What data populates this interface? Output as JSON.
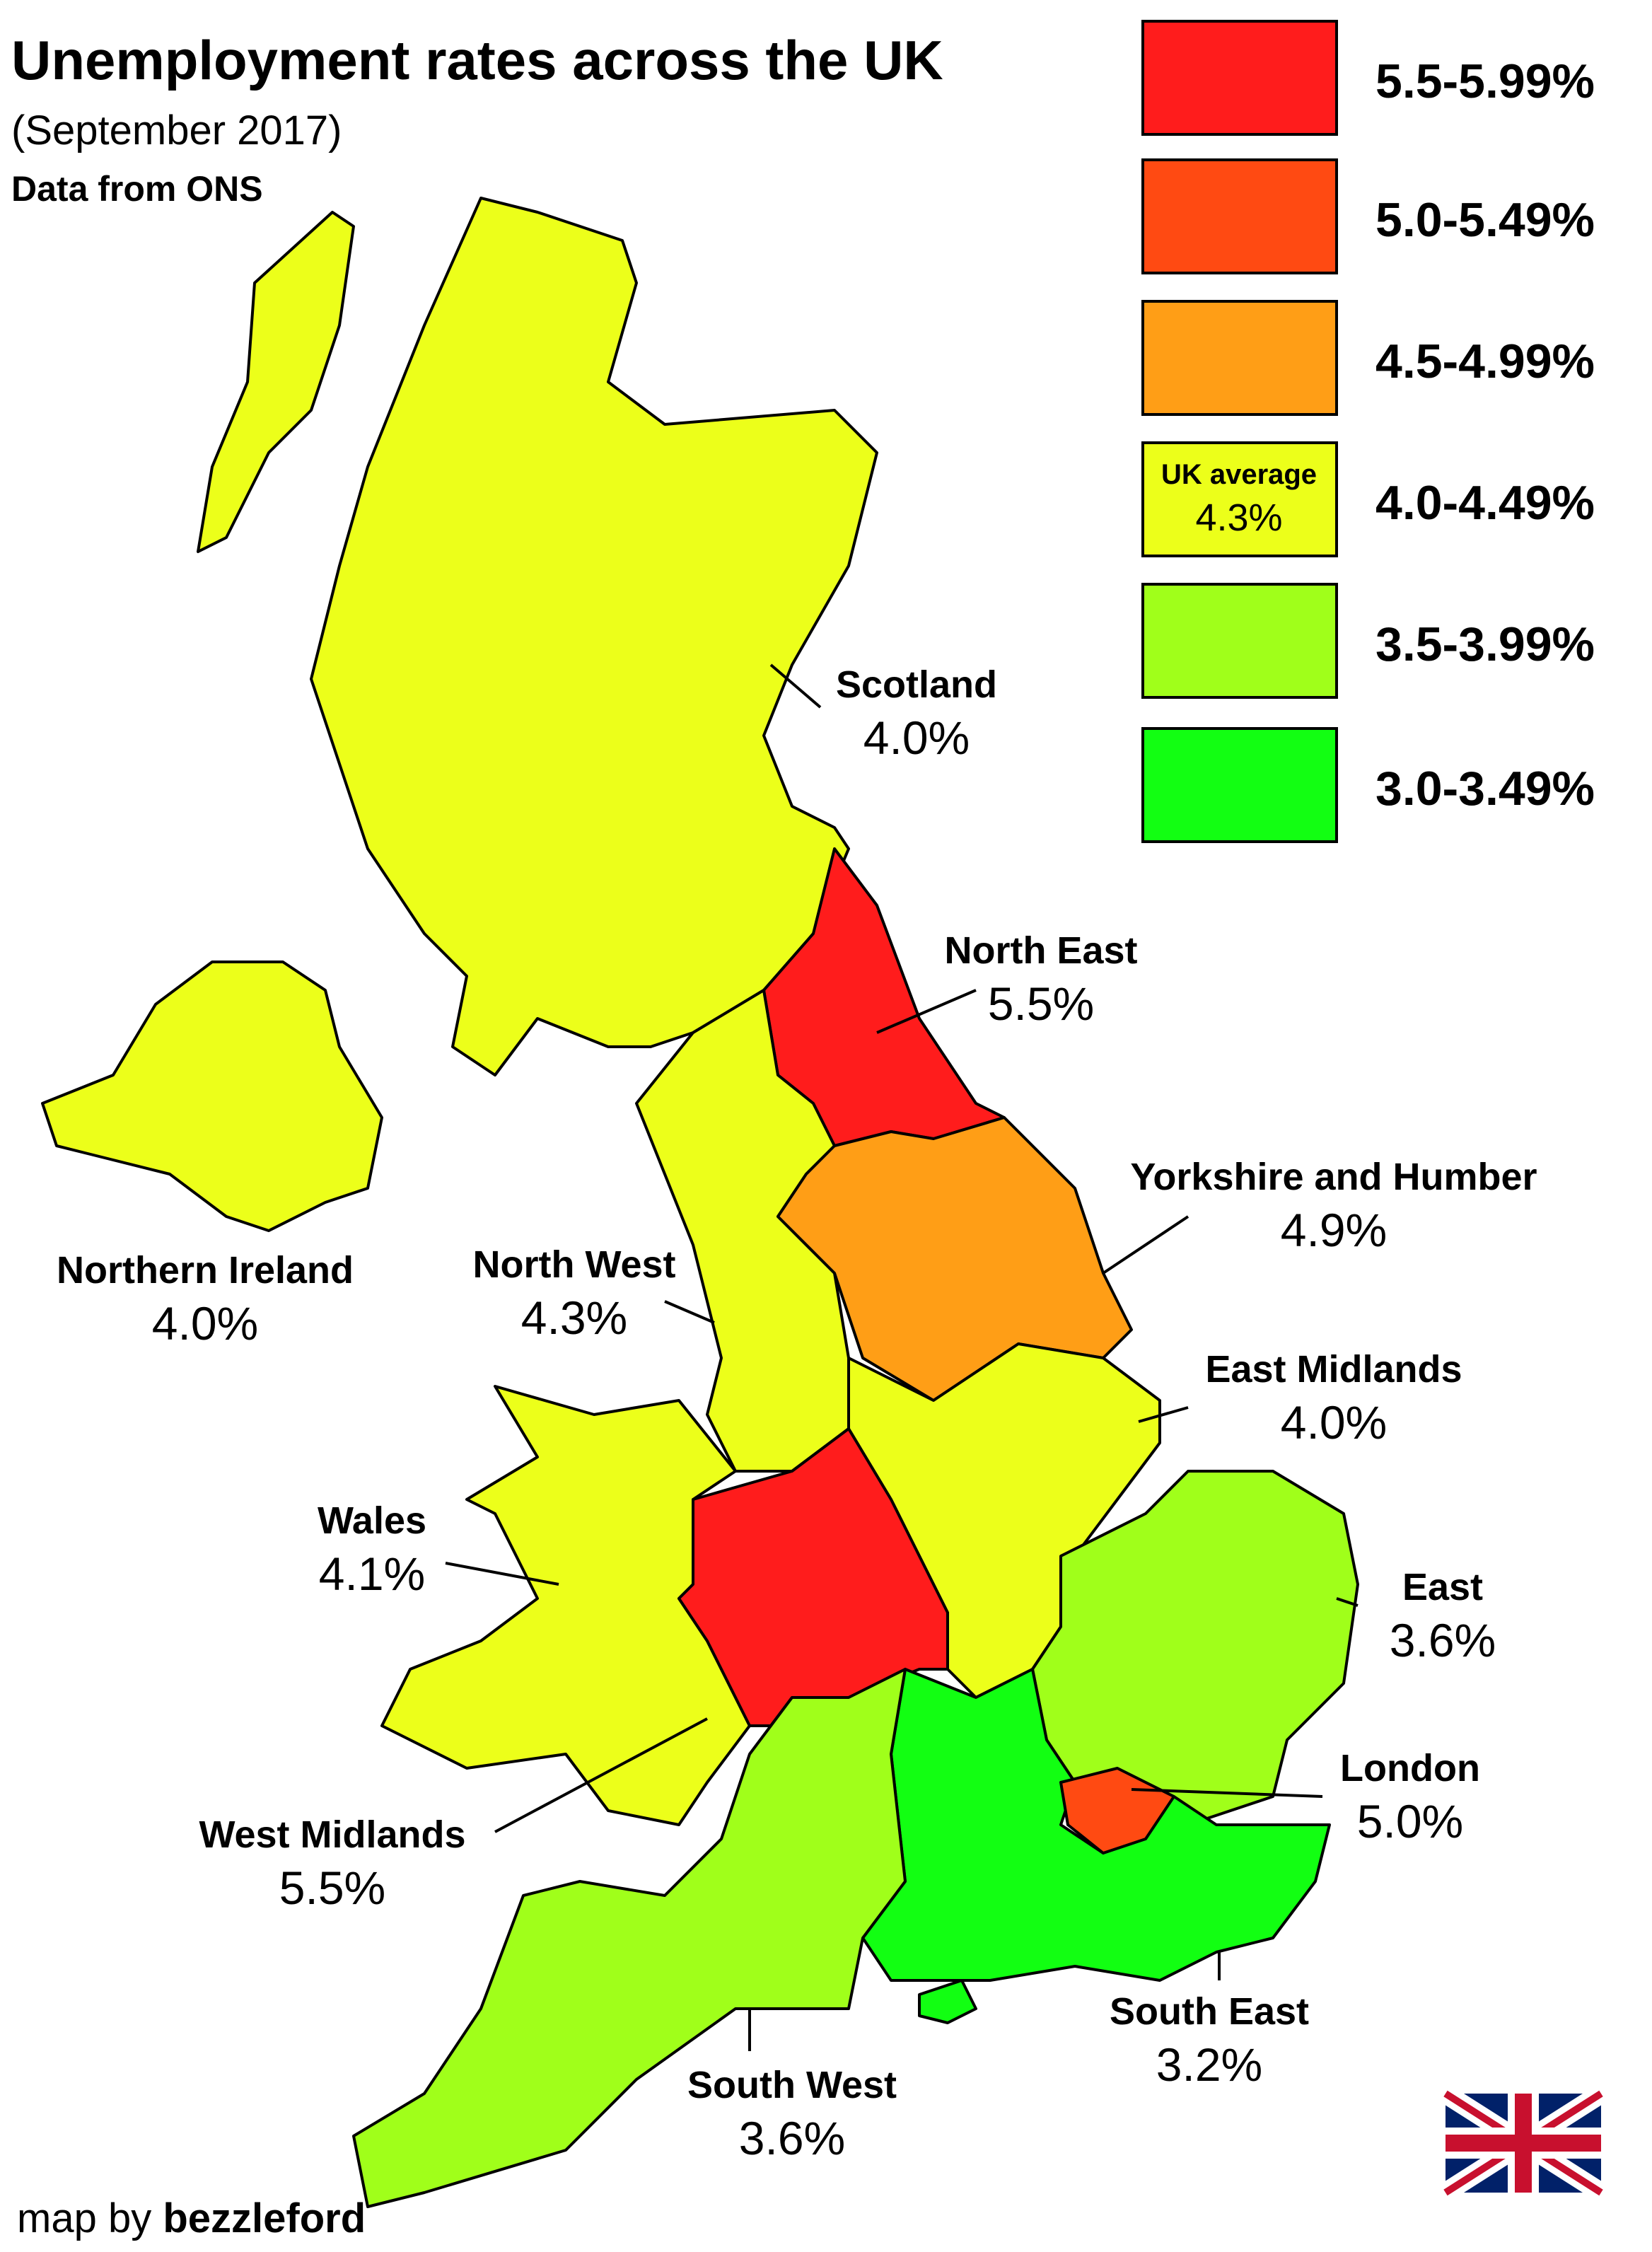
{
  "title": "Unemployment rates across the UK",
  "subtitle": "(September 2017)",
  "source": "Data from ONS",
  "legend": [
    {
      "label": "5.5-5.99%",
      "color": "#ff1c1c"
    },
    {
      "label": "5.0-5.49%",
      "color": "#ff4a12"
    },
    {
      "label": "4.5-4.99%",
      "color": "#ff9e16"
    },
    {
      "label": "4.0-4.49%",
      "color": "#ecff1a"
    },
    {
      "label": "3.5-3.99%",
      "color": "#a0ff1a"
    },
    {
      "label": "3.0-3.49%",
      "color": "#12ff12"
    }
  ],
  "uk_average": {
    "label": "UK average",
    "value": "4.3%"
  },
  "regions": [
    {
      "name": "Scotland",
      "value": "4.0%",
      "color": "#ecff1a"
    },
    {
      "name": "North East",
      "value": "5.5%",
      "color": "#ff1c1c"
    },
    {
      "name": "Yorkshire and Humber",
      "value": "4.9%",
      "color": "#ff9e16"
    },
    {
      "name": "Northern Ireland",
      "value": "4.0%",
      "color": "#ecff1a"
    },
    {
      "name": "North West",
      "value": "4.3%",
      "color": "#ecff1a"
    },
    {
      "name": "East Midlands",
      "value": "4.0%",
      "color": "#ecff1a"
    },
    {
      "name": "Wales",
      "value": "4.1%",
      "color": "#ecff1a"
    },
    {
      "name": "East",
      "value": "3.6%",
      "color": "#a0ff1a"
    },
    {
      "name": "London",
      "value": "5.0%",
      "color": "#ff4a12"
    },
    {
      "name": "West Midlands",
      "value": "5.5%",
      "color": "#ff1c1c"
    },
    {
      "name": "South East",
      "value": "3.2%",
      "color": "#12ff12"
    },
    {
      "name": "South West",
      "value": "3.6%",
      "color": "#a0ff1a"
    }
  ],
  "credit": {
    "prefix": "map by",
    "author": "bezzleford"
  }
}
